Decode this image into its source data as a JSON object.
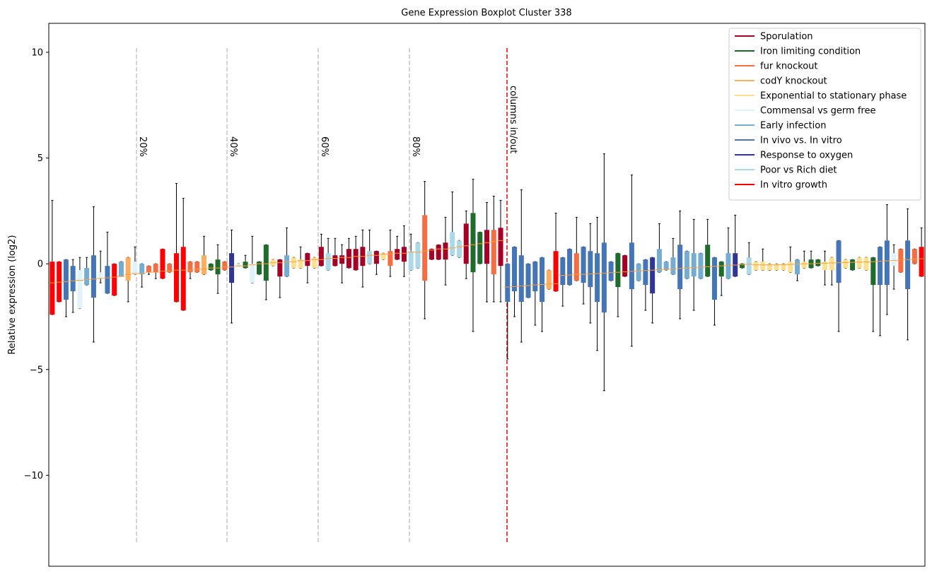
{
  "chart_data": {
    "type": "boxplot",
    "title": "Gene Expression Boxplot Cluster 338",
    "ylabel": "Relative expression (log2)",
    "ylim": [
      -14.3,
      11.37
    ],
    "yticks": [
      {
        "value": -10,
        "label": "−10"
      },
      {
        "value": -5,
        "label": "−5"
      },
      0,
      5,
      10
    ],
    "median_color": "#ff9e3d",
    "legend": "upper right",
    "series": [
      {
        "name": "Sporulation",
        "color": "#a50026"
      },
      {
        "name": "Iron limiting condition",
        "color": "#1e6b2b"
      },
      {
        "name": "fur knockout",
        "color": "#f46d43"
      },
      {
        "name": "codY knockout",
        "color": "#fdae61"
      },
      {
        "name": "Exponential to stationary phase",
        "color": "#fee090"
      },
      {
        "name": "Commensal vs germ free",
        "color": "#e0f3f8"
      },
      {
        "name": "Early infection",
        "color": "#74add1"
      },
      {
        "name": "In vivo vs. In vitro",
        "color": "#4575b4"
      },
      {
        "name": "Response to oxygen",
        "color": "#313695"
      },
      {
        "name": "Poor vs Rich diet",
        "color": "#abd9e9"
      },
      {
        "name": "In vitro growth",
        "color": "#ff0000"
      }
    ],
    "vlines": [
      {
        "x": 12.21,
        "label": "20%",
        "color": "#c8c8c8"
      },
      {
        "x": 25.33,
        "label": "40%",
        "color": "#c8c8c8"
      },
      {
        "x": 38.55,
        "label": "60%",
        "color": "#c8c8c8"
      },
      {
        "x": 51.78,
        "label": "80%",
        "color": "#c8c8c8"
      },
      {
        "x": 65.92,
        "label": "columns in/out",
        "color": "#e8141a"
      }
    ],
    "vline_range": [
      -13.2,
      10.2
    ],
    "boxes": [
      [
        10,
        -2.4,
        -2.4,
        -0.9,
        0.1,
        3.0
      ],
      [
        10,
        -1.8,
        -1.8,
        -0.87,
        0.1,
        0.1
      ],
      [
        7,
        -2.5,
        -1.7,
        -0.84,
        0.2,
        0.2
      ],
      [
        7,
        -2.3,
        -1.3,
        -0.81,
        -0.1,
        0.2
      ],
      [
        5,
        -2.1,
        -2.1,
        -0.78,
        -0.3,
        0.3
      ],
      [
        6,
        -1.0,
        -1.0,
        -0.75,
        -0.2,
        0.3
      ],
      [
        7,
        -3.7,
        -1.6,
        -0.72,
        0.4,
        2.7
      ],
      [
        5,
        -0.9,
        -0.7,
        -0.69,
        -0.4,
        0.6
      ],
      [
        7,
        -1.4,
        -1.4,
        -0.66,
        -0.1,
        1.5
      ],
      [
        10,
        -1.5,
        -1.5,
        -0.63,
        0.0,
        0.0
      ],
      [
        6,
        -0.6,
        -0.6,
        -0.6,
        0.1,
        0.1
      ],
      [
        3,
        -1.8,
        -0.8,
        -0.5,
        0.3,
        0.3
      ],
      [
        5,
        -0.5,
        -0.5,
        -0.45,
        0.1,
        0.8
      ],
      [
        6,
        -1.1,
        -0.5,
        -0.45,
        0.0,
        0.0
      ],
      [
        2,
        -0.5,
        -0.4,
        -0.4,
        -0.1,
        -0.1
      ],
      [
        2,
        -0.7,
        -0.4,
        -0.4,
        0.0,
        0.0
      ],
      [
        10,
        -0.7,
        -0.7,
        -0.35,
        0.7,
        0.7
      ],
      [
        2,
        -0.4,
        -0.4,
        -0.35,
        0.0,
        0.0
      ],
      [
        10,
        -1.8,
        -1.8,
        -0.3,
        0.5,
        3.8
      ],
      [
        10,
        -2.2,
        -2.2,
        -0.3,
        0.8,
        3.1
      ],
      [
        2,
        -0.7,
        -0.4,
        -0.3,
        0.1,
        0.1
      ],
      [
        2,
        -0.4,
        -0.4,
        -0.25,
        0.1,
        0.1
      ],
      [
        3,
        -0.5,
        -0.5,
        -0.25,
        0.4,
        1.3
      ],
      [
        1,
        -0.3,
        -0.3,
        -0.2,
        0.0,
        0.0
      ],
      [
        1,
        -1.4,
        -0.5,
        -0.2,
        0.2,
        0.9
      ],
      [
        2,
        -0.3,
        -0.3,
        -0.15,
        0.1,
        0.1
      ],
      [
        8,
        -2.8,
        -0.9,
        -0.15,
        0.5,
        1.6
      ],
      [
        5,
        -0.1,
        -0.1,
        -0.1,
        0.0,
        0.0
      ],
      [
        1,
        -0.2,
        -0.2,
        -0.1,
        0.1,
        0.4
      ],
      [
        5,
        -0.9,
        -0.9,
        -0.05,
        0.0,
        1.3
      ],
      [
        1,
        -0.5,
        -0.5,
        0.0,
        0.1,
        0.1
      ],
      [
        1,
        -1.7,
        -0.8,
        0.0,
        0.9,
        0.9
      ],
      [
        4,
        -0.1,
        -0.1,
        0.05,
        0.2,
        0.2
      ],
      [
        0,
        -1.6,
        -0.6,
        0.05,
        0.2,
        0.2
      ],
      [
        6,
        -0.6,
        -0.6,
        0.1,
        0.4,
        1.7
      ],
      [
        4,
        -0.2,
        -0.2,
        0.1,
        0.3,
        0.3
      ],
      [
        4,
        -0.2,
        -0.2,
        0.15,
        0.2,
        0.8
      ],
      [
        0,
        -0.9,
        -0.1,
        0.15,
        0.5,
        0.5
      ],
      [
        4,
        -0.2,
        -0.2,
        0.2,
        0.3,
        0.3
      ],
      [
        0,
        -0.1,
        -0.1,
        0.2,
        0.8,
        1.4
      ],
      [
        9,
        -0.3,
        -0.3,
        0.25,
        0.5,
        1.2
      ],
      [
        0,
        -0.1,
        -0.1,
        0.25,
        0.4,
        1.2
      ],
      [
        0,
        -0.9,
        0.0,
        0.3,
        0.4,
        0.9
      ],
      [
        0,
        -0.2,
        -0.2,
        0.3,
        0.7,
        1.2
      ],
      [
        0,
        -0.3,
        -0.3,
        0.35,
        0.7,
        1.3
      ],
      [
        0,
        -1.1,
        -0.1,
        0.35,
        0.8,
        1.6
      ],
      [
        9,
        0.0,
        0.0,
        0.4,
        0.6,
        1.6
      ],
      [
        0,
        -0.5,
        0.0,
        0.4,
        0.6,
        0.6
      ],
      [
        4,
        0.2,
        0.2,
        0.45,
        0.5,
        0.5
      ],
      [
        2,
        -0.6,
        -0.1,
        0.45,
        0.6,
        1.6
      ],
      [
        0,
        0.2,
        0.2,
        0.5,
        0.7,
        1.3
      ],
      [
        0,
        -0.6,
        0.1,
        0.5,
        0.8,
        1.8
      ],
      [
        9,
        -0.3,
        -0.3,
        0.55,
        0.6,
        1.4
      ],
      [
        9,
        -0.2,
        -0.2,
        0.55,
        1.0,
        1.0
      ],
      [
        2,
        -2.6,
        -0.8,
        0.6,
        2.3,
        3.9
      ],
      [
        0,
        0.2,
        0.2,
        0.65,
        0.7,
        0.7
      ],
      [
        0,
        0.2,
        0.2,
        0.7,
        0.9,
        0.9
      ],
      [
        0,
        -1.0,
        0.2,
        0.7,
        1.0,
        2.2
      ],
      [
        9,
        0.4,
        0.4,
        0.75,
        1.5,
        3.4
      ],
      [
        9,
        0.3,
        0.3,
        0.8,
        1.1,
        1.1
      ],
      [
        0,
        -0.7,
        0.0,
        0.85,
        1.9,
        2.5
      ],
      [
        1,
        -3.2,
        -0.4,
        0.9,
        2.4,
        4.0
      ],
      [
        1,
        0.0,
        0.0,
        0.95,
        1.5,
        1.5
      ],
      [
        0,
        -1.8,
        0.0,
        1.0,
        1.6,
        2.9
      ],
      [
        2,
        -1.8,
        -0.5,
        1.05,
        1.6,
        3.2
      ],
      [
        0,
        -1.8,
        -0.1,
        1.1,
        1.7,
        3.0
      ],
      [
        7,
        -4.5,
        -1.8,
        -1.1,
        0.0,
        0.0
      ],
      [
        7,
        -2.5,
        -1.3,
        -1.08,
        0.8,
        0.8
      ],
      [
        7,
        -3.7,
        -1.8,
        -1.05,
        0.4,
        3.5
      ],
      [
        7,
        -1.6,
        -1.6,
        -1.03,
        0.0,
        0.0
      ],
      [
        7,
        -2.9,
        -1.3,
        -1.0,
        0.1,
        0.1
      ],
      [
        7,
        -3.2,
        -1.8,
        -0.98,
        0.3,
        0.3
      ],
      [
        3,
        -1.2,
        -1.2,
        -0.96,
        -0.3,
        -0.3
      ],
      [
        10,
        -1.3,
        -1.3,
        -0.94,
        0.6,
        2.4
      ],
      [
        7,
        -2.0,
        -1.0,
        -0.55,
        0.3,
        0.3
      ],
      [
        7,
        -1.0,
        -1.0,
        -0.53,
        0.7,
        0.7
      ],
      [
        2,
        -0.8,
        -0.8,
        -0.5,
        0.5,
        2.2
      ],
      [
        7,
        -1.9,
        -0.9,
        -0.5,
        0.8,
        0.8
      ],
      [
        7,
        -2.8,
        -1.1,
        -0.48,
        0.6,
        1.9
      ],
      [
        7,
        -4.1,
        -1.8,
        -0.46,
        0.5,
        2.2
      ],
      [
        7,
        -6.0,
        -2.3,
        -0.44,
        1.0,
        5.2
      ],
      [
        7,
        -0.8,
        -0.8,
        -0.42,
        0.1,
        0.1
      ],
      [
        1,
        -2.5,
        -1.1,
        -0.4,
        0.5,
        0.5
      ],
      [
        0,
        -0.6,
        -0.6,
        -0.38,
        0.4,
        0.4
      ],
      [
        7,
        -3.9,
        -1.2,
        -0.36,
        1.0,
        4.2
      ],
      [
        6,
        -0.8,
        -0.8,
        -0.34,
        0.0,
        0.0
      ],
      [
        7,
        -2.2,
        -1.0,
        -0.32,
        0.2,
        0.2
      ],
      [
        8,
        -2.8,
        -1.4,
        -0.3,
        0.3,
        0.3
      ],
      [
        6,
        -0.4,
        -0.4,
        -0.28,
        0.7,
        1.9
      ],
      [
        6,
        -0.3,
        -0.3,
        -0.26,
        0.1,
        0.1
      ],
      [
        6,
        -0.5,
        -0.5,
        -0.24,
        0.3,
        1.2
      ],
      [
        7,
        -2.6,
        -1.2,
        -0.22,
        0.9,
        2.5
      ],
      [
        6,
        -0.7,
        -0.7,
        -0.2,
        0.6,
        0.6
      ],
      [
        6,
        -2.2,
        -0.6,
        -0.18,
        0.5,
        2.1
      ],
      [
        6,
        -0.7,
        -0.7,
        -0.16,
        0.5,
        0.5
      ],
      [
        1,
        -0.6,
        -0.6,
        -0.14,
        0.9,
        2.1
      ],
      [
        7,
        -2.9,
        -1.7,
        -0.12,
        0.3,
        0.3
      ],
      [
        1,
        -1.5,
        -0.6,
        -0.1,
        0.1,
        0.1
      ],
      [
        6,
        -0.7,
        -0.7,
        -0.08,
        0.5,
        1.7
      ],
      [
        8,
        -0.6,
        -0.6,
        -0.06,
        0.5,
        2.3
      ],
      [
        1,
        -0.2,
        -0.2,
        -0.04,
        0.0,
        0.0
      ],
      [
        9,
        -0.5,
        -0.5,
        -0.02,
        0.3,
        1.0
      ],
      [
        4,
        -0.3,
        -0.3,
        -0.05,
        0.1,
        0.1
      ],
      [
        4,
        -0.3,
        -0.3,
        -0.05,
        0.1,
        0.7
      ],
      [
        4,
        -0.3,
        -0.3,
        -0.05,
        0.0,
        0.0
      ],
      [
        4,
        -0.3,
        -0.3,
        -0.05,
        0.0,
        0.0
      ],
      [
        4,
        -0.3,
        -0.3,
        -0.04,
        0.0,
        0.0
      ],
      [
        4,
        -0.4,
        -0.4,
        -0.03,
        0.1,
        0.8
      ],
      [
        6,
        -0.8,
        -0.5,
        -0.02,
        0.2,
        0.2
      ],
      [
        4,
        -0.2,
        -0.2,
        0.0,
        0.1,
        0.6
      ],
      [
        1,
        -0.2,
        -0.2,
        0.0,
        0.2,
        0.6
      ],
      [
        1,
        -0.1,
        -0.1,
        0.02,
        0.2,
        0.2
      ],
      [
        4,
        -1.0,
        -0.3,
        0.03,
        0.1,
        0.6
      ],
      [
        4,
        -1.0,
        -0.3,
        0.04,
        0.3,
        0.3
      ],
      [
        7,
        -3.2,
        -0.9,
        0.05,
        1.1,
        1.1
      ],
      [
        4,
        -0.2,
        -0.2,
        0.06,
        0.2,
        0.2
      ],
      [
        1,
        -0.3,
        -0.3,
        0.07,
        0.2,
        0.2
      ],
      [
        4,
        -0.2,
        -0.2,
        0.08,
        0.3,
        0.3
      ],
      [
        4,
        -0.3,
        -0.3,
        0.09,
        0.3,
        0.3
      ],
      [
        1,
        -3.2,
        -1.0,
        0.1,
        0.3,
        0.3
      ],
      [
        7,
        -3.4,
        -1.0,
        0.12,
        0.8,
        0.8
      ],
      [
        7,
        -2.4,
        -1.0,
        0.14,
        1.1,
        2.8
      ],
      [
        5,
        -1.2,
        -0.1,
        0.16,
        0.5,
        0.9
      ],
      [
        2,
        -0.4,
        -0.4,
        0.18,
        0.7,
        0.7
      ],
      [
        7,
        -3.6,
        -1.2,
        0.2,
        1.1,
        2.6
      ],
      [
        2,
        0.0,
        0.0,
        0.22,
        0.7,
        0.7
      ],
      [
        10,
        -0.6,
        -0.6,
        0.24,
        0.8,
        1.7
      ]
    ]
  }
}
